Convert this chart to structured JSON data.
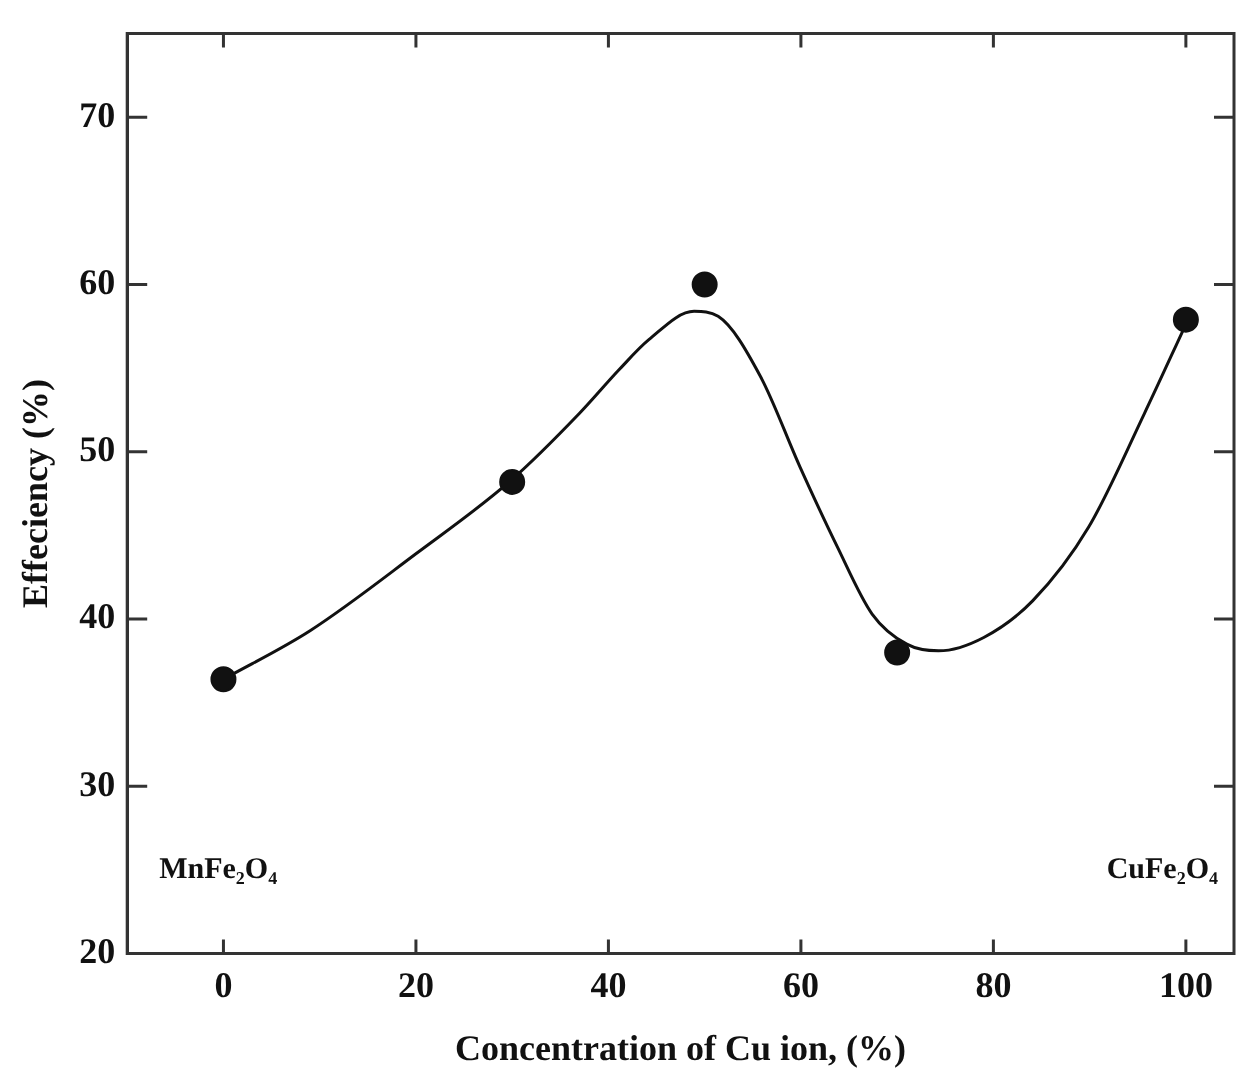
{
  "chart_data": {
    "type": "scatter",
    "xlabel": "Concentration of Cu ion, (%)",
    "ylabel": "Effeciency (%)",
    "xlim": [
      -10,
      105
    ],
    "xticks": [
      0,
      20,
      40,
      60,
      80,
      100
    ],
    "ylim": [
      20,
      75
    ],
    "yticks": [
      20,
      30,
      40,
      50,
      60,
      70
    ],
    "grid": false,
    "legend": false,
    "marker": "circle",
    "annotations": [
      "MnFe₂O₄",
      "CuFe₂O₄"
    ],
    "series": [
      {
        "color": "#111111",
        "x": [
          0,
          30,
          50,
          70,
          100
        ],
        "values": [
          36.4,
          48.2,
          60,
          38,
          57.9
        ]
      },
      {
        "type": "line",
        "color": "#111111",
        "marker": "none",
        "line_style": "solid",
        "x": [
          0,
          9,
          20,
          29.9,
          37,
          41.1,
          44.2,
          48.9,
          51.4,
          55.8,
          59.9,
          63.8,
          67.4,
          71,
          74.3,
          79,
          84.1,
          89.9,
          95.7,
          99.9
        ],
        "values": [
          36.4,
          39.3,
          43.9,
          48.3,
          52.3,
          54.9,
          56.7,
          58.4,
          58.1,
          54.5,
          49.1,
          44.3,
          40.3,
          38.5,
          38.1,
          38.9,
          41.1,
          45.5,
          52.3,
          57.5
        ]
      }
    ]
  }
}
